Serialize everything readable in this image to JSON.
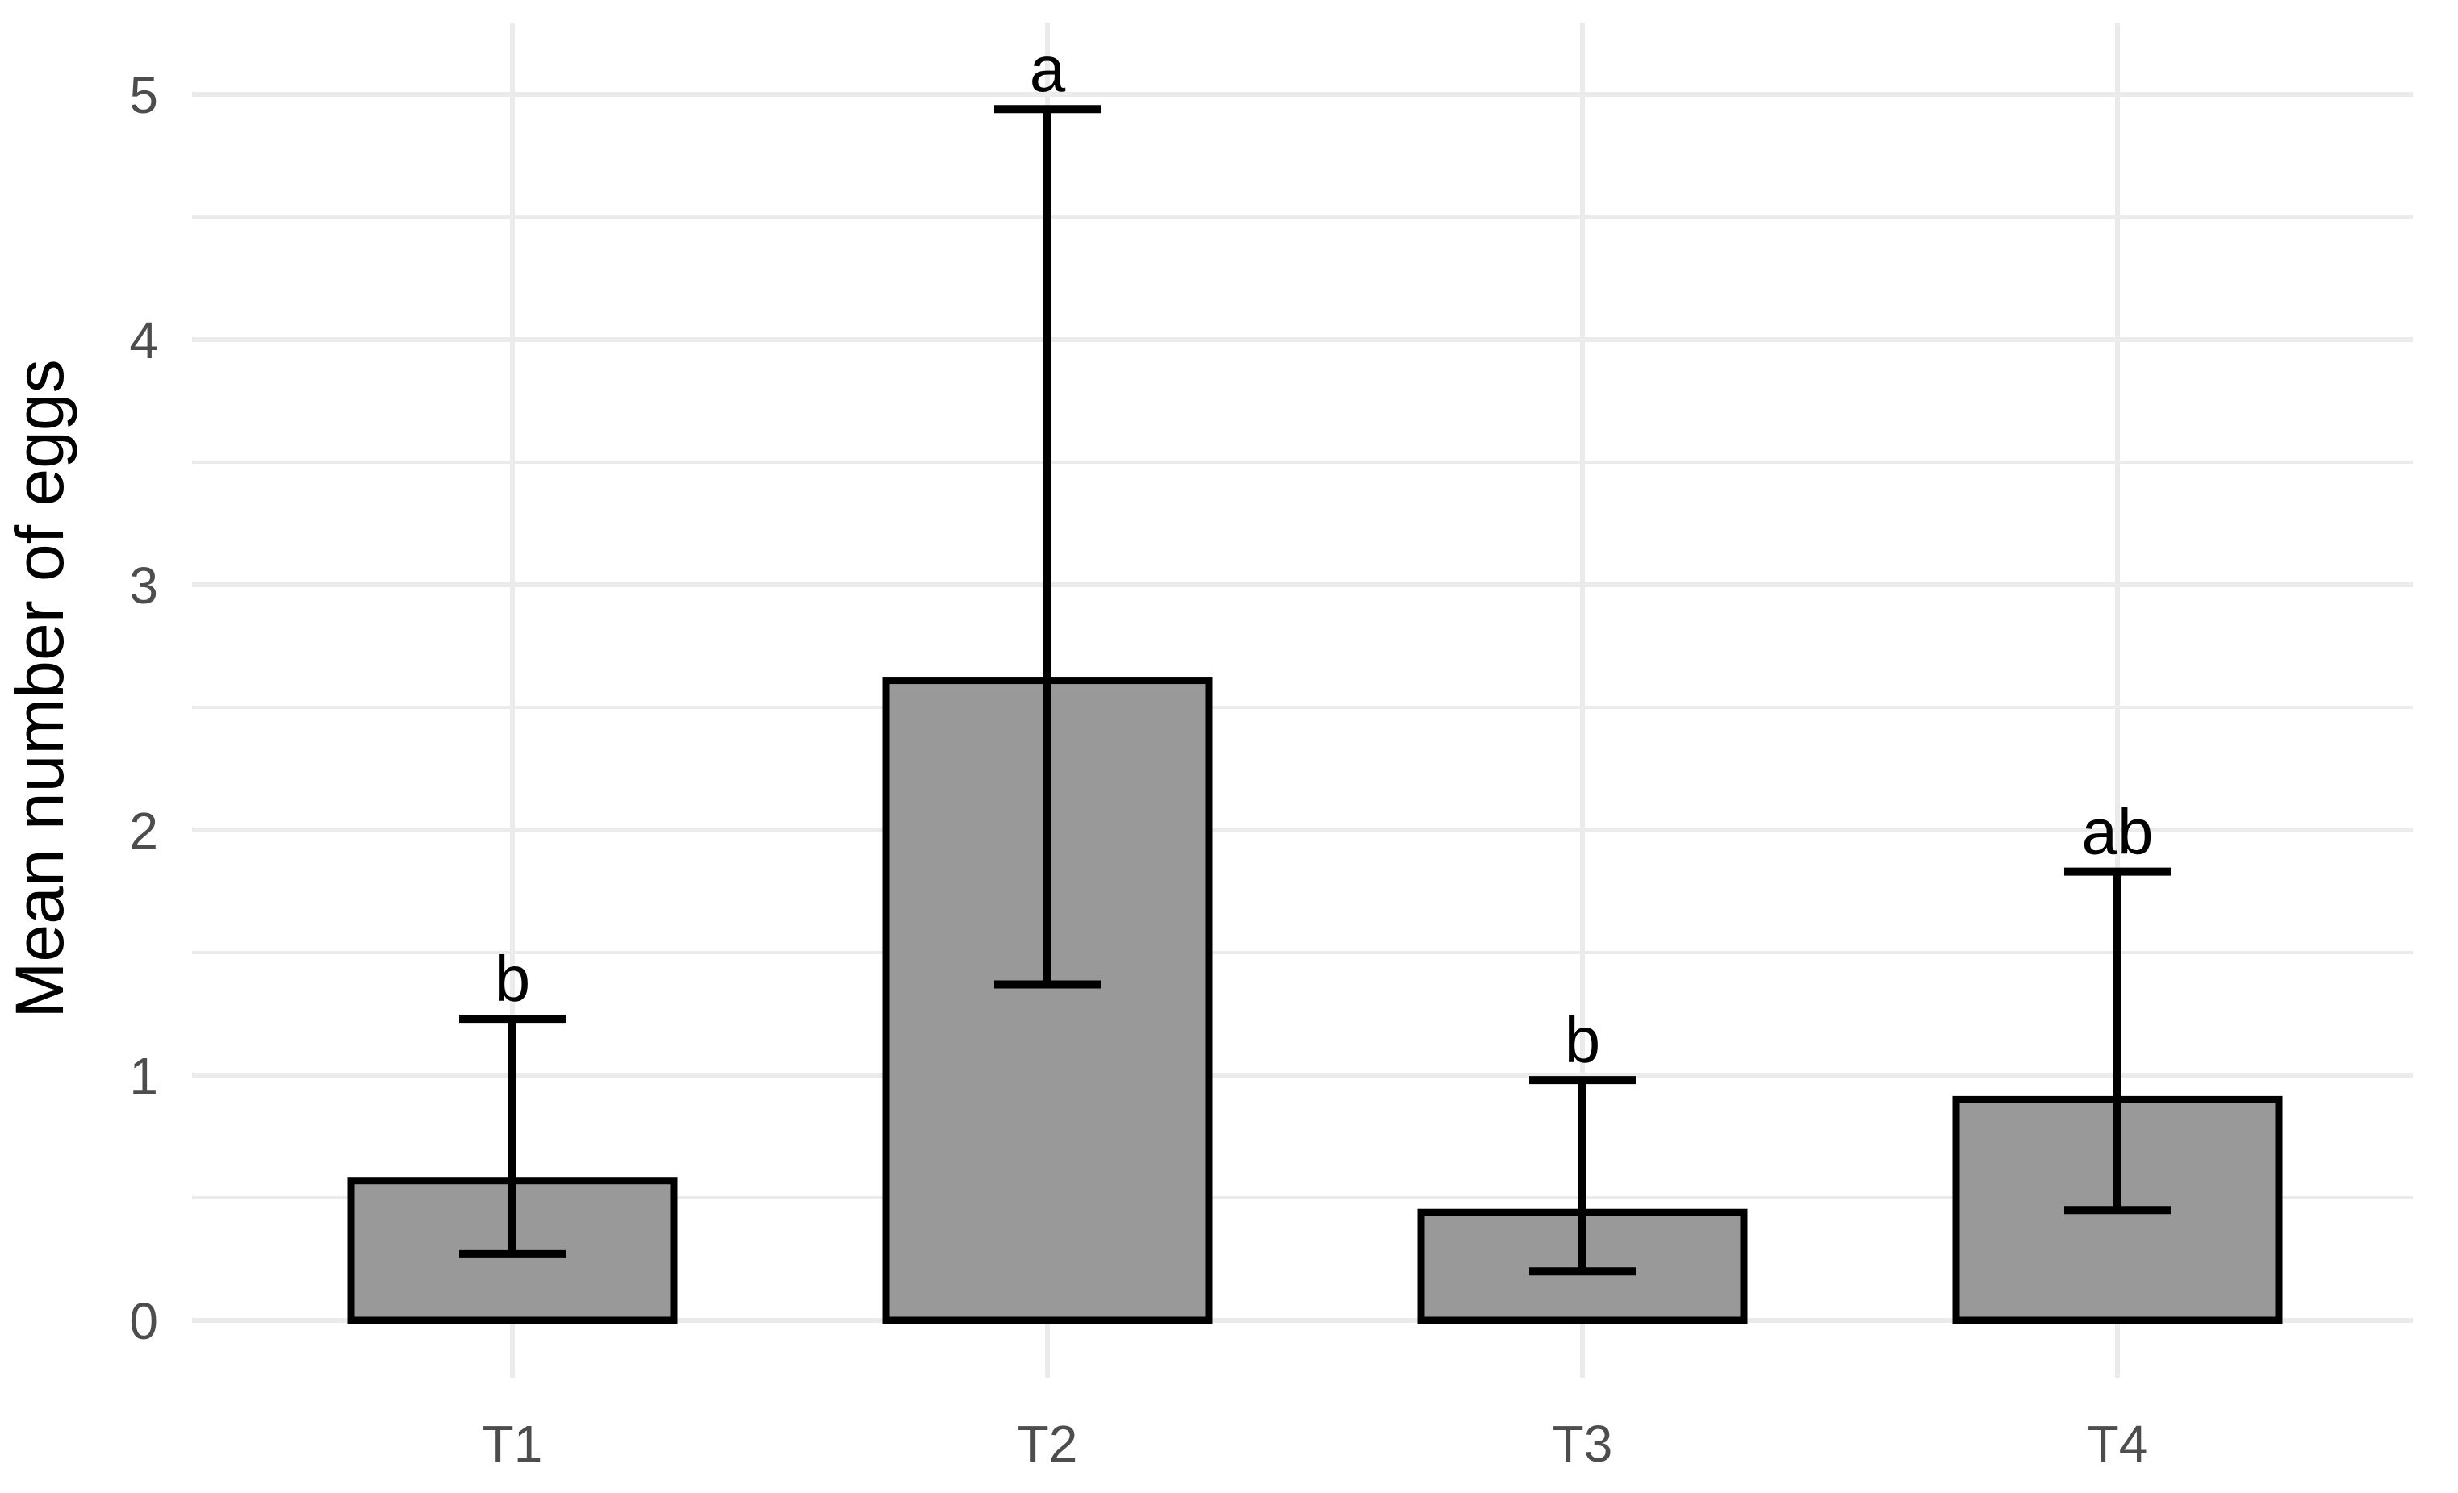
{
  "chart_data": {
    "type": "bar",
    "title": "",
    "xlabel": "",
    "ylabel": "Mean number of eggs",
    "ylim": [
      0,
      5.25
    ],
    "yticks": [
      0,
      1,
      2,
      3,
      4,
      5
    ],
    "categories": [
      "T1",
      "T2",
      "T3",
      "T4"
    ],
    "values": [
      0.57,
      2.61,
      0.44,
      0.9
    ],
    "error_low": [
      0.27,
      1.37,
      0.2,
      0.45
    ],
    "error_high": [
      1.23,
      4.94,
      0.98,
      1.83
    ],
    "significance_labels": [
      "b",
      "a",
      "b",
      "ab"
    ],
    "grid": true,
    "legend": "none",
    "colors": {
      "bar_fill": "#999999",
      "bar_stroke": "#000000",
      "error_bar": "#000000",
      "grid": "#ebebeb",
      "tick_text": "#4d4d4d"
    }
  }
}
